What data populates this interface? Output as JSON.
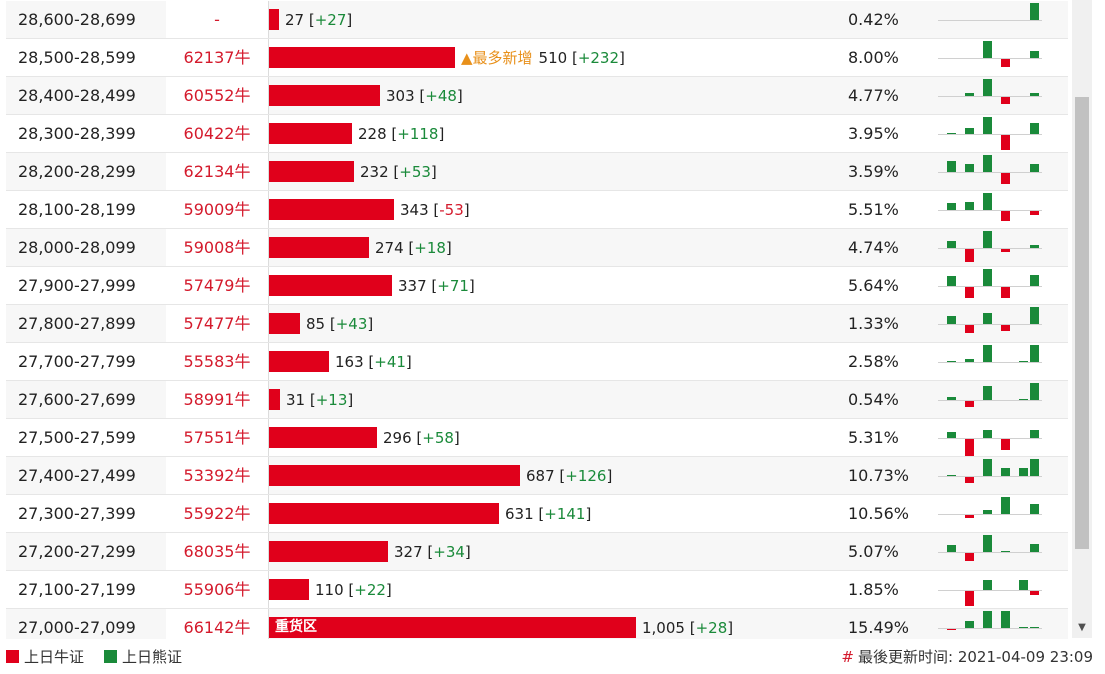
{
  "rows": [
    {
      "range": "28,600-28,699",
      "code": "-",
      "count": "27",
      "delta": "+27",
      "pct": "0.42%",
      "spark": [
        0,
        0,
        0,
        0,
        0,
        12
      ]
    },
    {
      "range": "28,500-28,599",
      "code": "62137牛",
      "count": "510",
      "delta": "+232",
      "pct": "8.00%",
      "note": "▲最多新增",
      "spark": [
        0,
        0,
        12,
        -6,
        0,
        5
      ]
    },
    {
      "range": "28,400-28,499",
      "code": "60552牛",
      "count": "303",
      "delta": "+48",
      "pct": "4.77%",
      "spark": [
        0,
        2,
        12,
        -5,
        0,
        2
      ]
    },
    {
      "range": "28,300-28,399",
      "code": "60422牛",
      "count": "228",
      "delta": "+118",
      "pct": "3.95%",
      "spark": [
        1,
        4,
        12,
        -11,
        0,
        8
      ]
    },
    {
      "range": "28,200-28,299",
      "code": "62134牛",
      "count": "232",
      "delta": "+53",
      "pct": "3.59%",
      "spark": [
        8,
        6,
        12,
        -8,
        0,
        6
      ]
    },
    {
      "range": "28,100-28,199",
      "code": "59009牛",
      "count": "343",
      "delta": "-53",
      "pct": "5.51%",
      "spark": [
        5,
        6,
        12,
        -7,
        0,
        -3
      ]
    },
    {
      "range": "28,000-28,099",
      "code": "59008牛",
      "count": "274",
      "delta": "+18",
      "pct": "4.74%",
      "spark": [
        5,
        -9,
        12,
        -2,
        0,
        2
      ]
    },
    {
      "range": "27,900-27,999",
      "code": "57479牛",
      "count": "337",
      "delta": "+71",
      "pct": "5.64%",
      "spark": [
        7,
        -8,
        12,
        -8,
        0,
        8
      ]
    },
    {
      "range": "27,800-27,899",
      "code": "57477牛",
      "count": "85",
      "delta": "+43",
      "pct": "1.33%",
      "spark": [
        6,
        -6,
        8,
        -4,
        0,
        12
      ]
    },
    {
      "range": "27,700-27,799",
      "code": "55583牛",
      "count": "163",
      "delta": "+41",
      "pct": "2.58%",
      "spark": [
        1,
        2,
        12,
        0,
        1,
        12
      ]
    },
    {
      "range": "27,600-27,699",
      "code": "58991牛",
      "count": "31",
      "delta": "+13",
      "pct": "0.54%",
      "spark": [
        2,
        -4,
        10,
        0,
        1,
        12
      ]
    },
    {
      "range": "27,500-27,599",
      "code": "57551牛",
      "count": "296",
      "delta": "+58",
      "pct": "5.31%",
      "spark": [
        4,
        -12,
        6,
        -8,
        0,
        6
      ]
    },
    {
      "range": "27,400-27,499",
      "code": "53392牛",
      "count": "687",
      "delta": "+126",
      "pct": "10.73%",
      "spark": [
        1,
        -4,
        12,
        6,
        6,
        12
      ]
    },
    {
      "range": "27,300-27,399",
      "code": "55922牛",
      "count": "631",
      "delta": "+141",
      "pct": "10.56%",
      "spark": [
        0,
        -2,
        3,
        12,
        0,
        7
      ]
    },
    {
      "range": "27,200-27,299",
      "code": "68035牛",
      "count": "327",
      "delta": "+34",
      "pct": "5.07%",
      "spark": [
        5,
        -6,
        12,
        1,
        0,
        6
      ]
    },
    {
      "range": "27,100-27,199",
      "code": "55906牛",
      "count": "110",
      "delta": "+22",
      "pct": "1.85%",
      "spark": [
        0,
        -11,
        7,
        0,
        7,
        -3
      ]
    },
    {
      "range": "27,000-27,099",
      "code": "66142牛",
      "count": "1,005",
      "delta": "+28",
      "pct": "15.49%",
      "bar_text": "重货区",
      "spark": [
        -1,
        5,
        12,
        12,
        1,
        1
      ]
    }
  ],
  "bar_max": "1,005",
  "legend": {
    "bull": "上日牛证",
    "bear": "上日熊证"
  },
  "update": {
    "hash": "#",
    "label": "最後更新时间:",
    "time": "2021-04-09 23:09"
  },
  "colors": {
    "bull": "#e0001b",
    "bear": "#1a8a3a",
    "note": "#e8901a"
  }
}
